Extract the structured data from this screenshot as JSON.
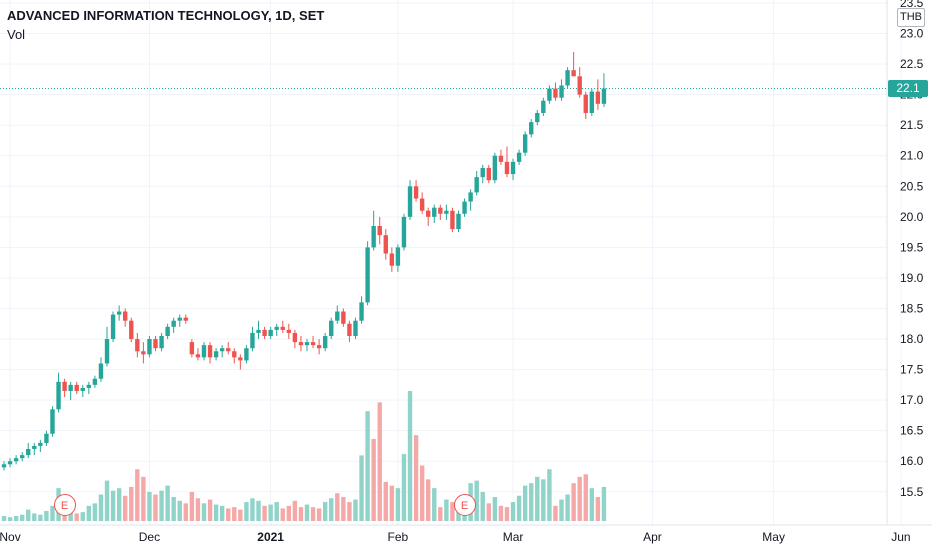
{
  "header": {
    "title": "ADVANCED INFORMATION TECHNOLOGY, 1D, SET",
    "volume_label": "Vol",
    "currency": "THB",
    "last_price_label": "22.1"
  },
  "earnings_markers": [
    {
      "label": "E",
      "date_index": 10
    },
    {
      "label": "E",
      "date_index": 76
    }
  ],
  "colors": {
    "up": "#26a69a",
    "down": "#ef5350",
    "volume_up": "#8fd3c9",
    "volume_down": "#f4a9a8",
    "last_price_line": "#26a69a",
    "grid": "#f0f3fa",
    "axis_text": "#131722"
  },
  "chart_data": {
    "type": "candlestick",
    "title": "ADVANCED INFORMATION TECHNOLOGY, 1D, SET",
    "currency": "THB",
    "ylim": [
      15.3,
      23.5
    ],
    "y_ticks": [
      15.5,
      16.0,
      16.5,
      17.0,
      17.5,
      18.0,
      18.5,
      19.0,
      19.5,
      20.0,
      20.5,
      21.0,
      21.5,
      22.0,
      22.5,
      23.0,
      23.5
    ],
    "x_ticks": [
      {
        "label": "Nov",
        "date_index": 1
      },
      {
        "label": "Dec",
        "date_index": 24
      },
      {
        "label": "2021",
        "date_index": 44
      },
      {
        "label": "Feb",
        "date_index": 65
      },
      {
        "label": "Mar",
        "date_index": 84
      },
      {
        "label": "Apr",
        "date_index": 107
      },
      {
        "label": "May",
        "date_index": 127
      },
      {
        "label": "Jun",
        "date_index": 148
      }
    ],
    "last_price": 22.1,
    "candles": [
      [
        15.9,
        16.0,
        15.85,
        15.95
      ],
      [
        15.95,
        16.05,
        15.9,
        16.0
      ],
      [
        16.0,
        16.1,
        15.95,
        16.05
      ],
      [
        16.05,
        16.15,
        16.0,
        16.1
      ],
      [
        16.1,
        16.3,
        16.05,
        16.2
      ],
      [
        16.2,
        16.3,
        16.1,
        16.25
      ],
      [
        16.25,
        16.35,
        16.15,
        16.3
      ],
      [
        16.3,
        16.5,
        16.25,
        16.45
      ],
      [
        16.45,
        16.9,
        16.4,
        16.85
      ],
      [
        16.85,
        17.45,
        16.8,
        17.3
      ],
      [
        17.3,
        17.35,
        17.05,
        17.15
      ],
      [
        17.15,
        17.3,
        17.0,
        17.25
      ],
      [
        17.25,
        17.3,
        17.1,
        17.15
      ],
      [
        17.15,
        17.25,
        17.05,
        17.2
      ],
      [
        17.2,
        17.3,
        17.1,
        17.25
      ],
      [
        17.25,
        17.4,
        17.2,
        17.35
      ],
      [
        17.35,
        17.7,
        17.3,
        17.6
      ],
      [
        17.6,
        18.2,
        17.55,
        18.0
      ],
      [
        18.0,
        18.45,
        17.95,
        18.4
      ],
      [
        18.4,
        18.55,
        18.3,
        18.45
      ],
      [
        18.45,
        18.5,
        18.2,
        18.3
      ],
      [
        18.3,
        18.35,
        17.95,
        18.0
      ],
      [
        18.0,
        18.1,
        17.7,
        17.8
      ],
      [
        17.8,
        17.95,
        17.6,
        17.75
      ],
      [
        17.75,
        18.05,
        17.7,
        18.0
      ],
      [
        18.0,
        18.05,
        17.8,
        17.85
      ],
      [
        17.85,
        18.1,
        17.8,
        18.05
      ],
      [
        18.05,
        18.25,
        18.0,
        18.2
      ],
      [
        18.2,
        18.35,
        18.1,
        18.3
      ],
      [
        18.3,
        18.4,
        18.2,
        18.35
      ],
      [
        18.35,
        18.4,
        18.25,
        18.3
      ],
      [
        17.95,
        18.0,
        17.7,
        17.75
      ],
      [
        17.75,
        17.85,
        17.65,
        17.7
      ],
      [
        17.7,
        17.95,
        17.65,
        17.9
      ],
      [
        17.9,
        17.95,
        17.6,
        17.7
      ],
      [
        17.7,
        17.85,
        17.65,
        17.8
      ],
      [
        17.8,
        17.9,
        17.7,
        17.85
      ],
      [
        17.85,
        17.95,
        17.75,
        17.8
      ],
      [
        17.8,
        17.85,
        17.6,
        17.7
      ],
      [
        17.7,
        17.75,
        17.5,
        17.65
      ],
      [
        17.65,
        17.9,
        17.6,
        17.85
      ],
      [
        17.85,
        18.2,
        17.8,
        18.1
      ],
      [
        18.1,
        18.3,
        18.0,
        18.15
      ],
      [
        18.15,
        18.2,
        18.0,
        18.05
      ],
      [
        18.05,
        18.2,
        18.0,
        18.15
      ],
      [
        18.15,
        18.25,
        18.05,
        18.2
      ],
      [
        18.2,
        18.3,
        18.1,
        18.15
      ],
      [
        18.15,
        18.25,
        18.0,
        18.1
      ],
      [
        18.1,
        18.15,
        17.85,
        17.95
      ],
      [
        17.95,
        18.05,
        17.8,
        17.9
      ],
      [
        17.9,
        18.0,
        17.8,
        17.95
      ],
      [
        17.95,
        18.05,
        17.85,
        17.9
      ],
      [
        17.9,
        18.0,
        17.75,
        17.85
      ],
      [
        17.85,
        18.1,
        17.8,
        18.05
      ],
      [
        18.05,
        18.35,
        18.0,
        18.3
      ],
      [
        18.3,
        18.55,
        18.25,
        18.45
      ],
      [
        18.45,
        18.5,
        18.2,
        18.25
      ],
      [
        18.25,
        18.3,
        17.95,
        18.05
      ],
      [
        18.05,
        18.35,
        18.0,
        18.3
      ],
      [
        18.3,
        18.7,
        18.25,
        18.6
      ],
      [
        18.6,
        19.6,
        18.55,
        19.5
      ],
      [
        19.5,
        20.1,
        19.45,
        19.85
      ],
      [
        19.85,
        20.0,
        19.55,
        19.7
      ],
      [
        19.7,
        19.8,
        19.3,
        19.4
      ],
      [
        19.4,
        19.5,
        19.1,
        19.2
      ],
      [
        19.2,
        19.55,
        19.1,
        19.5
      ],
      [
        19.5,
        20.05,
        19.45,
        20.0
      ],
      [
        20.0,
        20.6,
        19.95,
        20.5
      ],
      [
        20.5,
        20.6,
        20.25,
        20.3
      ],
      [
        20.3,
        20.4,
        20.05,
        20.1
      ],
      [
        20.1,
        20.15,
        19.85,
        20.0
      ],
      [
        20.0,
        20.2,
        19.9,
        20.15
      ],
      [
        20.15,
        20.2,
        19.95,
        20.05
      ],
      [
        20.05,
        20.2,
        19.95,
        20.1
      ],
      [
        20.1,
        20.15,
        19.75,
        19.8
      ],
      [
        19.8,
        20.1,
        19.75,
        20.05
      ],
      [
        20.05,
        20.3,
        20.0,
        20.25
      ],
      [
        20.25,
        20.45,
        20.1,
        20.4
      ],
      [
        20.4,
        20.75,
        20.35,
        20.65
      ],
      [
        20.65,
        20.85,
        20.55,
        20.8
      ],
      [
        20.8,
        20.85,
        20.55,
        20.6
      ],
      [
        20.6,
        21.05,
        20.55,
        21.0
      ],
      [
        21.0,
        21.1,
        20.85,
        20.9
      ],
      [
        20.9,
        21.15,
        20.65,
        20.7
      ],
      [
        20.7,
        20.95,
        20.6,
        20.9
      ],
      [
        20.9,
        21.1,
        20.85,
        21.05
      ],
      [
        21.05,
        21.4,
        21.0,
        21.35
      ],
      [
        21.35,
        21.6,
        21.3,
        21.55
      ],
      [
        21.55,
        21.75,
        21.5,
        21.7
      ],
      [
        21.7,
        21.95,
        21.65,
        21.9
      ],
      [
        21.9,
        22.15,
        21.85,
        22.1
      ],
      [
        22.1,
        22.2,
        21.9,
        21.95
      ],
      [
        21.95,
        22.25,
        21.9,
        22.15
      ],
      [
        22.15,
        22.45,
        22.1,
        22.4
      ],
      [
        22.4,
        22.7,
        22.35,
        22.3
      ],
      [
        22.3,
        22.45,
        21.95,
        22.0
      ],
      [
        22.0,
        22.05,
        21.6,
        21.7
      ],
      [
        21.7,
        22.1,
        21.65,
        22.05
      ],
      [
        22.05,
        22.25,
        21.75,
        21.85
      ],
      [
        21.85,
        22.35,
        21.8,
        22.1
      ]
    ],
    "volume": [
      [
        0.4,
        "up"
      ],
      [
        0.3,
        "up"
      ],
      [
        0.4,
        "up"
      ],
      [
        0.5,
        "up"
      ],
      [
        0.9,
        "up"
      ],
      [
        0.6,
        "up"
      ],
      [
        0.5,
        "up"
      ],
      [
        0.8,
        "up"
      ],
      [
        1.2,
        "up"
      ],
      [
        2.6,
        "up"
      ],
      [
        1.0,
        "down"
      ],
      [
        0.8,
        "up"
      ],
      [
        0.6,
        "down"
      ],
      [
        0.7,
        "up"
      ],
      [
        1.2,
        "up"
      ],
      [
        1.4,
        "up"
      ],
      [
        2.1,
        "up"
      ],
      [
        3.2,
        "up"
      ],
      [
        2.4,
        "up"
      ],
      [
        2.6,
        "up"
      ],
      [
        2.0,
        "down"
      ],
      [
        2.7,
        "down"
      ],
      [
        4.1,
        "down"
      ],
      [
        3.5,
        "down"
      ],
      [
        2.3,
        "up"
      ],
      [
        2.1,
        "down"
      ],
      [
        2.4,
        "up"
      ],
      [
        2.8,
        "up"
      ],
      [
        1.9,
        "up"
      ],
      [
        1.6,
        "up"
      ],
      [
        1.4,
        "down"
      ],
      [
        2.3,
        "down"
      ],
      [
        1.8,
        "down"
      ],
      [
        1.4,
        "up"
      ],
      [
        1.7,
        "down"
      ],
      [
        1.3,
        "up"
      ],
      [
        1.2,
        "up"
      ],
      [
        1.0,
        "down"
      ],
      [
        1.1,
        "down"
      ],
      [
        0.9,
        "down"
      ],
      [
        1.5,
        "up"
      ],
      [
        1.8,
        "up"
      ],
      [
        1.6,
        "up"
      ],
      [
        1.2,
        "down"
      ],
      [
        1.3,
        "up"
      ],
      [
        1.5,
        "up"
      ],
      [
        1.0,
        "down"
      ],
      [
        1.2,
        "down"
      ],
      [
        1.6,
        "down"
      ],
      [
        1.1,
        "down"
      ],
      [
        1.3,
        "up"
      ],
      [
        1.1,
        "down"
      ],
      [
        1.0,
        "down"
      ],
      [
        1.5,
        "up"
      ],
      [
        1.8,
        "up"
      ],
      [
        2.2,
        "down"
      ],
      [
        1.9,
        "down"
      ],
      [
        1.5,
        "down"
      ],
      [
        1.7,
        "up"
      ],
      [
        5.2,
        "up"
      ],
      [
        8.7,
        "up"
      ],
      [
        6.5,
        "down"
      ],
      [
        9.4,
        "down"
      ],
      [
        3.1,
        "down"
      ],
      [
        2.8,
        "down"
      ],
      [
        2.6,
        "up"
      ],
      [
        5.3,
        "up"
      ],
      [
        10.3,
        "up"
      ],
      [
        6.8,
        "down"
      ],
      [
        4.4,
        "down"
      ],
      [
        3.3,
        "down"
      ],
      [
        2.6,
        "up"
      ],
      [
        1.1,
        "down"
      ],
      [
        1.7,
        "up"
      ],
      [
        1.5,
        "down"
      ],
      [
        1.6,
        "up"
      ],
      [
        2.1,
        "up"
      ],
      [
        3.0,
        "up"
      ],
      [
        3.2,
        "up"
      ],
      [
        2.3,
        "up"
      ],
      [
        1.4,
        "down"
      ],
      [
        1.9,
        "up"
      ],
      [
        1.2,
        "down"
      ],
      [
        1.1,
        "down"
      ],
      [
        1.5,
        "up"
      ],
      [
        2.0,
        "up"
      ],
      [
        2.8,
        "up"
      ],
      [
        3.0,
        "up"
      ],
      [
        3.5,
        "up"
      ],
      [
        3.3,
        "up"
      ],
      [
        4.1,
        "up"
      ],
      [
        1.2,
        "down"
      ],
      [
        1.7,
        "up"
      ],
      [
        2.1,
        "up"
      ],
      [
        3.0,
        "down"
      ],
      [
        3.5,
        "down"
      ],
      [
        3.7,
        "down"
      ],
      [
        2.6,
        "up"
      ],
      [
        1.9,
        "down"
      ],
      [
        2.7,
        "up"
      ]
    ]
  }
}
